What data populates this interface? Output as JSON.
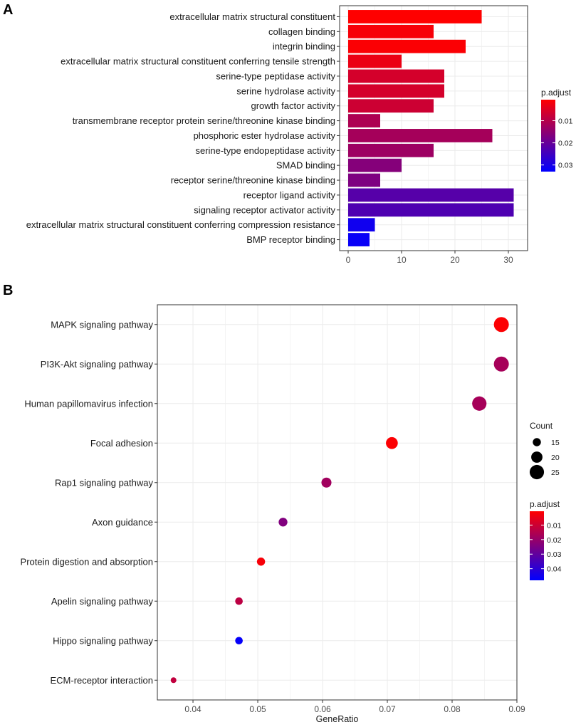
{
  "chart_data": [
    {
      "panel": "A",
      "type": "bar",
      "orientation": "horizontal",
      "categories": [
        "extracellular matrix structural constituent",
        "collagen binding",
        "integrin binding",
        "extracellular matrix structural constituent conferring tensile strength",
        "serine-type peptidase activity",
        "serine hydrolase activity",
        "growth factor activity",
        "transmembrane receptor protein serine/threonine kinase binding",
        "phosphoric ester hydrolase activity",
        "serine-type endopeptidase activity",
        "SMAD binding",
        "receptor serine/threonine kinase binding",
        "receptor ligand activity",
        "signaling receptor activator activity",
        "extracellular matrix structural constituent conferring compression resistance",
        "BMP receptor binding"
      ],
      "values": [
        25,
        16,
        22,
        10,
        18,
        18,
        16,
        6,
        27,
        16,
        10,
        6,
        31,
        31,
        5,
        4
      ],
      "p_adjust": [
        0.0005,
        0.0015,
        0.001,
        0.003,
        0.006,
        0.006,
        0.007,
        0.011,
        0.012,
        0.013,
        0.016,
        0.017,
        0.022,
        0.023,
        0.031,
        0.032
      ],
      "xlim": [
        0,
        32
      ],
      "xticks": [
        "0",
        "10",
        "20",
        "30"
      ],
      "xtick_values": [
        0,
        10,
        20,
        30
      ],
      "xlabel": "",
      "ylabel": "",
      "legend": {
        "title": "p.adjust",
        "labels": [
          "0.01",
          "0.02",
          "0.03"
        ],
        "label_values": [
          0.01,
          0.02,
          0.03
        ],
        "range": [
          0.0005,
          0.033
        ],
        "position": "right"
      },
      "grid": true
    },
    {
      "panel": "B",
      "type": "scatter",
      "categories": [
        "MAPK signaling pathway",
        "PI3K-Akt signaling pathway",
        "Human papillomavirus infection",
        "Focal adhesion",
        "Rap1 signaling pathway",
        "Axon guidance",
        "Protein digestion and absorption",
        "Apelin signaling pathway",
        "Hippo signaling pathway",
        "ECM-receptor interaction"
      ],
      "x": [
        0.0876,
        0.0876,
        0.0842,
        0.0707,
        0.0606,
        0.0539,
        0.0505,
        0.0471,
        0.0471,
        0.037
      ],
      "count": [
        26,
        26,
        25,
        21,
        18,
        16,
        15,
        14,
        14,
        11
      ],
      "p_adjust": [
        0.001,
        0.017,
        0.017,
        0.001,
        0.018,
        0.024,
        0.002,
        0.013,
        0.047,
        0.012
      ],
      "xlim": [
        0.0345,
        0.09
      ],
      "xticks": [
        "0.04",
        "0.05",
        "0.06",
        "0.07",
        "0.08",
        "0.09"
      ],
      "xtick_values": [
        0.04,
        0.05,
        0.06,
        0.07,
        0.08,
        0.09
      ],
      "xlabel": "GeneRatio",
      "ylabel": "",
      "size_legend": {
        "title": "Count",
        "labels": [
          "15",
          "20",
          "25"
        ],
        "values": [
          15,
          20,
          25
        ]
      },
      "color_legend": {
        "title": "p.adjust",
        "labels": [
          "0.01",
          "0.02",
          "0.03",
          "0.04"
        ],
        "label_values": [
          0.01,
          0.02,
          0.03,
          0.04
        ],
        "range": [
          0.0005,
          0.048
        ]
      },
      "grid": true
    }
  ],
  "panel_labels": {
    "a": "A",
    "b": "B"
  },
  "colors": {
    "low_p": "#ff0000",
    "high_p": "#0000ff",
    "grid": "#ebebeb",
    "axis": "#333333"
  }
}
